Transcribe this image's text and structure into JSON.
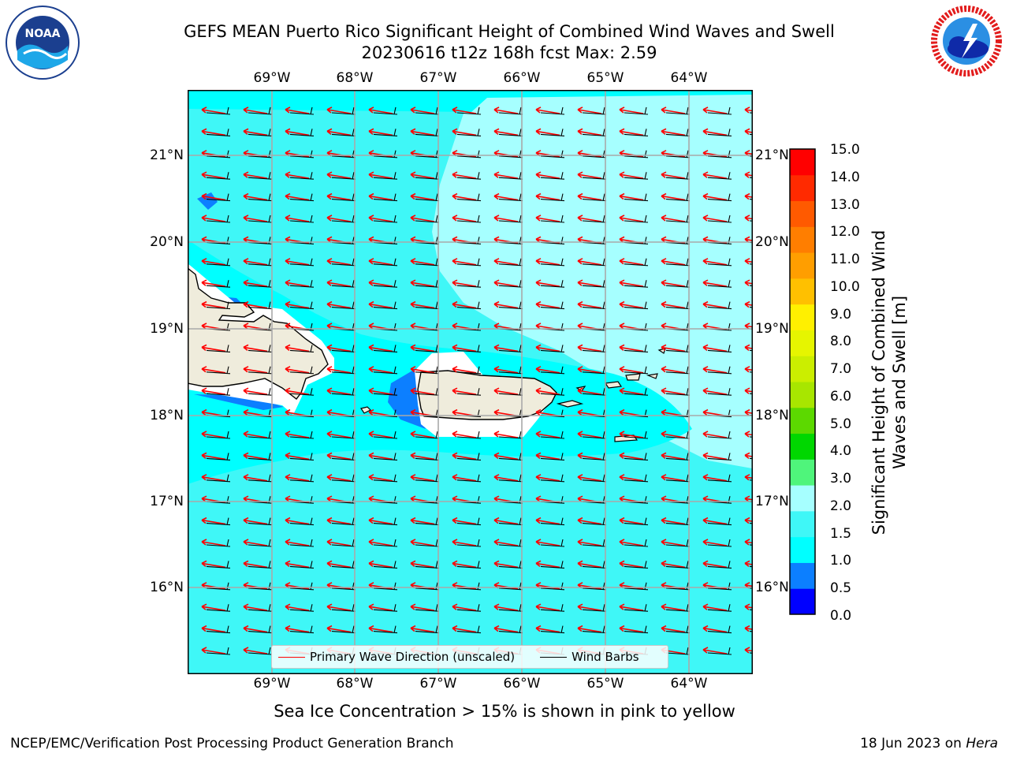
{
  "title": {
    "line1": "GEFS MEAN Puerto Rico Significant Height of Combined Wind Waves and Swell",
    "line2": "20230616 t12z 168h fcst   Max: 2.59"
  },
  "logos": {
    "left": {
      "icon": "noaa-logo",
      "text": "NOAA"
    },
    "right": {
      "icon": "nws-logo",
      "text": "NATIONAL WEATHER SERVICE"
    }
  },
  "map": {
    "lon_ticks": [
      "69°W",
      "68°W",
      "67°W",
      "66°W",
      "65°W",
      "64°W"
    ],
    "lat_ticks": [
      "21°N",
      "20°N",
      "19°N",
      "18°N",
      "17°N",
      "16°N"
    ],
    "lon_range": [
      -70.0,
      -63.25
    ],
    "lat_range": [
      15.05,
      21.75
    ],
    "colors": {
      "land": "#efecdc",
      "sea_1_1_5": "#00ffff",
      "sea_1_5_2": "#3ff7f7",
      "sea_2_3": "#a6ffff",
      "sea_0_5_1": "#0c7fff",
      "wave_arrow": "#ff0000",
      "wind_barb": "#000000"
    }
  },
  "legend": {
    "wave_label": "Primary Wave Direction (unscaled)",
    "wind_label": "Wind Barbs"
  },
  "colorbar": {
    "title": "Significant Height of Combined Wind Waves and Swell [m]",
    "labels": [
      "15.0",
      "14.0",
      "13.0",
      "12.0",
      "11.0",
      "10.0",
      "9.0",
      "8.0",
      "7.0",
      "6.0",
      "5.0",
      "4.0",
      "3.0",
      "2.0",
      "1.5",
      "1.0",
      "0.5",
      "0.0"
    ],
    "bins": [
      {
        "range": "0.0-0.5",
        "color": "#0000ff"
      },
      {
        "range": "0.5-1.0",
        "color": "#0c7fff"
      },
      {
        "range": "1.0-1.5",
        "color": "#00ffff"
      },
      {
        "range": "1.5-2.0",
        "color": "#3ff7f7"
      },
      {
        "range": "2.0-3.0",
        "color": "#a6ffff"
      },
      {
        "range": "3.0-4.0",
        "color": "#4ff57b"
      },
      {
        "range": "4.0-5.0",
        "color": "#00d700"
      },
      {
        "range": "5.0-6.0",
        "color": "#5cd900"
      },
      {
        "range": "6.0-7.0",
        "color": "#a8e600"
      },
      {
        "range": "7.0-8.0",
        "color": "#cbee00"
      },
      {
        "range": "8.0-9.0",
        "color": "#e6f500"
      },
      {
        "range": "9.0-10.0",
        "color": "#fff000"
      },
      {
        "range": "10.0-11.0",
        "color": "#ffc000"
      },
      {
        "range": "11.0-12.0",
        "color": "#ff9e00"
      },
      {
        "range": "12.0-13.0",
        "color": "#ff7e00"
      },
      {
        "range": "13.0-14.0",
        "color": "#ff5a00"
      },
      {
        "range": "14.0-15.0",
        "color": "#ff2a00"
      },
      {
        "range": "15.0+",
        "color": "#ff0000"
      }
    ]
  },
  "subtitle": "Sea Ice Concentration > 15% is shown in pink to yellow",
  "footer": {
    "left": "NCEP/EMC/Verification Post Processing Product Generation Branch",
    "date": "18 Jun 2023 on ",
    "machine": "Hera"
  }
}
